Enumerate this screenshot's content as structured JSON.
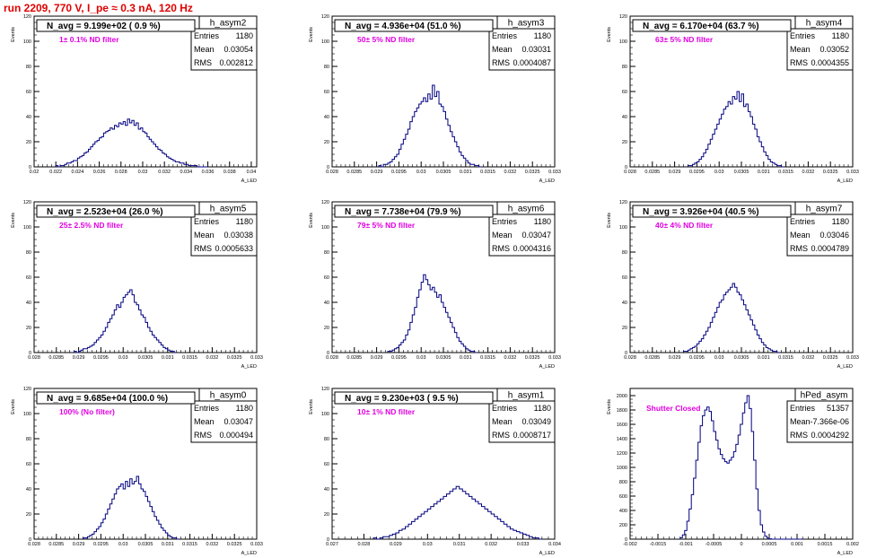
{
  "run_title": "run 2209,   770 V, I_pe ≈ 0.3 nA, 120 Hz",
  "colors": {
    "title": "#e00000",
    "annotation": "#e000e0",
    "histogram": "#000080",
    "frame": "#000000"
  },
  "chart_data": [
    {
      "type": "histogram",
      "name": "h_asym2",
      "title": "N_avg = 9.199e+02 ( 0.9 %)",
      "annotation": "1± 0.1% ND filter",
      "ylabel": "Events",
      "xlabel": "A_LED",
      "stats": {
        "entries_label": "Entries",
        "entries": "1180",
        "mean_label": "Mean",
        "mean": "0.03054",
        "rms_label": "RMS",
        "rms": "0.002812"
      },
      "xlim": [
        0.02,
        0.0405
      ],
      "ylim": [
        0,
        120
      ],
      "x_ticks": [
        "0.02",
        "0.022",
        "0.024",
        "0.026",
        "0.028",
        "0.03",
        "0.032",
        "0.034",
        "0.036",
        "0.038",
        "0.04"
      ],
      "y_ticks": [
        "0",
        "20",
        "40",
        "60",
        "80",
        "100",
        "120"
      ],
      "bins": {
        "start": 0.022,
        "width": 0.0002,
        "counts": [
          1,
          0,
          1,
          1,
          2,
          3,
          3,
          4,
          5,
          5,
          7,
          8,
          9,
          11,
          12,
          14,
          16,
          18,
          20,
          21,
          23,
          24,
          27,
          28,
          29,
          31,
          30,
          33,
          32,
          35,
          34,
          36,
          33,
          38,
          35,
          37,
          33,
          35,
          30,
          31,
          28,
          27,
          24,
          22,
          20,
          18,
          16,
          14,
          13,
          11,
          10,
          8,
          7,
          6,
          5,
          4,
          4,
          3,
          3,
          2,
          2,
          1,
          1,
          1,
          1,
          0,
          0,
          0,
          0,
          0
        ]
      }
    },
    {
      "type": "histogram",
      "name": "h_asym3",
      "title": "N_avg = 4.936e+04 (51.0 %)",
      "annotation": "50± 5% ND filter",
      "ylabel": "Events",
      "xlabel": "A_LED",
      "stats": {
        "entries_label": "Entries",
        "entries": "1180",
        "mean_label": "Mean",
        "mean": "0.03031",
        "rms_label": "RMS",
        "rms": "0.0004087"
      },
      "xlim": [
        0.028,
        0.033
      ],
      "ylim": [
        0,
        120
      ],
      "x_ticks": [
        "0.028",
        "0.0285",
        "0.029",
        "0.0295",
        "0.03",
        "0.0305",
        "0.031",
        "0.0315",
        "0.032",
        "0.0325",
        "0.033"
      ],
      "y_ticks": [
        "0",
        "20",
        "40",
        "60",
        "80",
        "100",
        "120"
      ],
      "bins": {
        "start": 0.02905,
        "width": 5e-05,
        "counts": [
          1,
          0,
          2,
          2,
          3,
          4,
          6,
          8,
          10,
          14,
          18,
          22,
          26,
          30,
          36,
          40,
          44,
          47,
          50,
          52,
          55,
          52,
          58,
          54,
          65,
          56,
          60,
          50,
          48,
          44,
          38,
          33,
          28,
          24,
          20,
          16,
          12,
          9,
          7,
          5,
          3,
          2,
          2,
          1,
          1,
          0
        ]
      }
    },
    {
      "type": "histogram",
      "name": "h_asym4",
      "title": "N_avg = 6.170e+04 (63.7 %)",
      "annotation": "63± 5% ND filter",
      "ylabel": "Events",
      "xlabel": "A_LED",
      "stats": {
        "entries_label": "Entries",
        "entries": "1180",
        "mean_label": "Mean",
        "mean": "0.03052",
        "rms_label": "RMS",
        "rms": "0.0004355"
      },
      "xlim": [
        0.028,
        0.033
      ],
      "ylim": [
        0,
        120
      ],
      "x_ticks": [
        "0.028",
        "0.0285",
        "0.029",
        "0.0295",
        "0.03",
        "0.0305",
        "0.031",
        "0.0315",
        "0.032",
        "0.0325",
        "0.033"
      ],
      "y_ticks": [
        "0",
        "20",
        "40",
        "60",
        "80",
        "100",
        "120"
      ],
      "bins": {
        "start": 0.0293,
        "width": 5e-05,
        "counts": [
          1,
          1,
          2,
          3,
          4,
          6,
          8,
          11,
          14,
          18,
          22,
          26,
          30,
          34,
          38,
          42,
          46,
          48,
          52,
          50,
          56,
          54,
          60,
          52,
          58,
          48,
          50,
          44,
          40,
          34,
          30,
          24,
          20,
          16,
          12,
          9,
          6,
          4,
          3,
          2,
          1,
          1,
          0
        ]
      }
    },
    {
      "type": "histogram",
      "name": "h_asym5",
      "title": "N_avg = 2.523e+04 (26.0 %)",
      "annotation": "25± 2.5% ND filter",
      "ylabel": "Events",
      "xlabel": "A_LED",
      "stats": {
        "entries_label": "Entries",
        "entries": "1180",
        "mean_label": "Mean",
        "mean": "0.03038",
        "rms_label": "RMS",
        "rms": "0.0005633"
      },
      "xlim": [
        0.028,
        0.033
      ],
      "ylim": [
        0,
        120
      ],
      "x_ticks": [
        "0.028",
        "0.0285",
        "0.029",
        "0.0295",
        "0.03",
        "0.0305",
        "0.031",
        "0.0315",
        "0.032",
        "0.0325",
        "0.033"
      ],
      "y_ticks": [
        "0",
        "20",
        "40",
        "60",
        "80",
        "100",
        "120"
      ],
      "bins": {
        "start": 0.0289,
        "width": 5e-05,
        "counts": [
          1,
          0,
          1,
          2,
          3,
          3,
          4,
          5,
          6,
          8,
          10,
          12,
          14,
          17,
          20,
          24,
          27,
          30,
          34,
          38,
          36,
          40,
          44,
          46,
          48,
          50,
          46,
          40,
          38,
          34,
          30,
          28,
          24,
          20,
          17,
          14,
          12,
          10,
          8,
          6,
          4,
          3,
          2,
          1,
          1,
          0
        ]
      }
    },
    {
      "type": "histogram",
      "name": "h_asym6",
      "title": "N_avg = 7.738e+04 (79.9 %)",
      "annotation": "79± 5% ND filter",
      "ylabel": "Events",
      "xlabel": "A_LED",
      "stats": {
        "entries_label": "Entries",
        "entries": "1180",
        "mean_label": "Mean",
        "mean": "0.03047",
        "rms_label": "RMS",
        "rms": "0.0004316"
      },
      "xlim": [
        0.028,
        0.033
      ],
      "ylim": [
        0,
        120
      ],
      "x_ticks": [
        "0.028",
        "0.0285",
        "0.029",
        "0.0295",
        "0.03",
        "0.0305",
        "0.031",
        "0.0315",
        "0.032",
        "0.0325",
        "0.033"
      ],
      "y_ticks": [
        "0",
        "20",
        "40",
        "60",
        "80",
        "100",
        "120"
      ],
      "bins": {
        "start": 0.02925,
        "width": 5e-05,
        "counts": [
          1,
          1,
          2,
          3,
          4,
          6,
          8,
          10,
          14,
          18,
          24,
          30,
          36,
          44,
          50,
          56,
          62,
          58,
          54,
          50,
          52,
          48,
          44,
          46,
          40,
          36,
          32,
          28,
          24,
          20,
          16,
          12,
          9,
          7,
          5,
          3,
          2,
          1,
          1,
          0
        ]
      }
    },
    {
      "type": "histogram",
      "name": "h_asym7",
      "title": "N_avg = 3.926e+04 (40.5 %)",
      "annotation": "40± 4% ND filter",
      "ylabel": "Events",
      "xlabel": "A_LED",
      "stats": {
        "entries_label": "Entries",
        "entries": "1180",
        "mean_label": "Mean",
        "mean": "0.03046",
        "rms_label": "RMS",
        "rms": "0.0004789"
      },
      "xlim": [
        0.028,
        0.033
      ],
      "ylim": [
        0,
        120
      ],
      "x_ticks": [
        "0.028",
        "0.0285",
        "0.029",
        "0.0295",
        "0.03",
        "0.0305",
        "0.031",
        "0.0315",
        "0.032",
        "0.0325",
        "0.033"
      ],
      "y_ticks": [
        "0",
        "20",
        "40",
        "60",
        "80",
        "100",
        "120"
      ],
      "bins": {
        "start": 0.0292,
        "width": 5e-05,
        "counts": [
          1,
          1,
          2,
          3,
          4,
          5,
          7,
          9,
          11,
          14,
          17,
          20,
          24,
          28,
          32,
          36,
          40,
          42,
          46,
          48,
          50,
          52,
          55,
          52,
          48,
          46,
          42,
          38,
          34,
          30,
          26,
          22,
          18,
          14,
          11,
          8,
          6,
          4,
          3,
          2,
          1,
          1,
          0
        ]
      }
    },
    {
      "type": "histogram",
      "name": "h_asym0",
      "title": "N_avg = 9.685e+04 (100.0 %)",
      "annotation": "100% (No filter)",
      "ylabel": "Events",
      "xlabel": "A_LED",
      "stats": {
        "entries_label": "Entries",
        "entries": "1180",
        "mean_label": "Mean",
        "mean": "0.03047",
        "rms_label": "RMS",
        "rms": "0.000494"
      },
      "xlim": [
        0.028,
        0.033
      ],
      "ylim": [
        0,
        120
      ],
      "x_ticks": [
        "0.028",
        "0.0285",
        "0.029",
        "0.0295",
        "0.03",
        "0.0305",
        "0.031",
        "0.0315",
        "0.032",
        "0.0325",
        "0.033"
      ],
      "y_ticks": [
        "0",
        "20",
        "40",
        "60",
        "80",
        "100",
        "120"
      ],
      "bins": {
        "start": 0.0291,
        "width": 5e-05,
        "counts": [
          1,
          1,
          2,
          3,
          4,
          6,
          8,
          10,
          13,
          16,
          20,
          24,
          28,
          32,
          36,
          40,
          42,
          44,
          40,
          46,
          42,
          48,
          44,
          46,
          50,
          44,
          40,
          38,
          34,
          30,
          26,
          22,
          18,
          15,
          12,
          9,
          7,
          5,
          3,
          2,
          1,
          1,
          0
        ]
      }
    },
    {
      "type": "histogram",
      "name": "h_asym1",
      "title": "N_avg = 9.230e+03 ( 9.5 %)",
      "annotation": "10± 1% ND filter",
      "ylabel": "Events",
      "xlabel": "A_LED",
      "stats": {
        "entries_label": "Entries",
        "entries": "1180",
        "mean_label": "Mean",
        "mean": "0.03049",
        "rms_label": "RMS",
        "rms": "0.0008717"
      },
      "xlim": [
        0.027,
        0.034
      ],
      "ylim": [
        0,
        120
      ],
      "x_ticks": [
        "0.027",
        "0.028",
        "0.029",
        "0.03",
        "0.031",
        "0.032",
        "0.033",
        "0.034"
      ],
      "y_ticks": [
        "0",
        "20",
        "40",
        "60",
        "80",
        "100",
        "120"
      ],
      "bins": {
        "start": 0.0283,
        "width": 0.0001,
        "counts": [
          1,
          0,
          1,
          2,
          2,
          3,
          4,
          5,
          7,
          8,
          10,
          12,
          14,
          16,
          18,
          20,
          22,
          24,
          26,
          28,
          30,
          32,
          34,
          36,
          38,
          40,
          42,
          40,
          38,
          36,
          34,
          32,
          30,
          28,
          26,
          24,
          22,
          20,
          18,
          16,
          14,
          12,
          10,
          8,
          7,
          6,
          5,
          4,
          3,
          2,
          1,
          1,
          0
        ]
      }
    },
    {
      "type": "histogram",
      "name": "hPed_asym",
      "title": "",
      "annotation": "Shutter Closed",
      "ylabel": "Events",
      "xlabel": "A_LED",
      "stats": {
        "entries_label": "Entries",
        "entries": "51357",
        "mean_label": "Mean",
        "mean": "-7.366e-06",
        "rms_label": "RMS",
        "rms": "0.0004292"
      },
      "xlim": [
        -0.002,
        0.002
      ],
      "ylim": [
        0,
        2100
      ],
      "x_ticks": [
        "-0.002",
        "-0.0015",
        "-0.001",
        "-0.0005",
        "0",
        "0.0005",
        "0.001",
        "0.0015",
        "0.002"
      ],
      "y_ticks": [
        "0",
        "200",
        "400",
        "600",
        "800",
        "1000",
        "1200",
        "1400",
        "1600",
        "1800",
        "2000"
      ],
      "bins": {
        "start": -0.0011,
        "width": 4e-05,
        "counts": [
          20,
          60,
          120,
          250,
          420,
          620,
          850,
          1100,
          1350,
          1580,
          1720,
          1800,
          1840,
          1780,
          1650,
          1500,
          1380,
          1260,
          1180,
          1120,
          1080,
          1060,
          1100,
          1140,
          1220,
          1320,
          1450,
          1600,
          1760,
          1900,
          2000,
          1820,
          1500,
          1100,
          700,
          400,
          200,
          100,
          40,
          15,
          5,
          0,
          0,
          0,
          0,
          0,
          0,
          0,
          0,
          0,
          0,
          0,
          0,
          0,
          0
        ]
      }
    }
  ]
}
